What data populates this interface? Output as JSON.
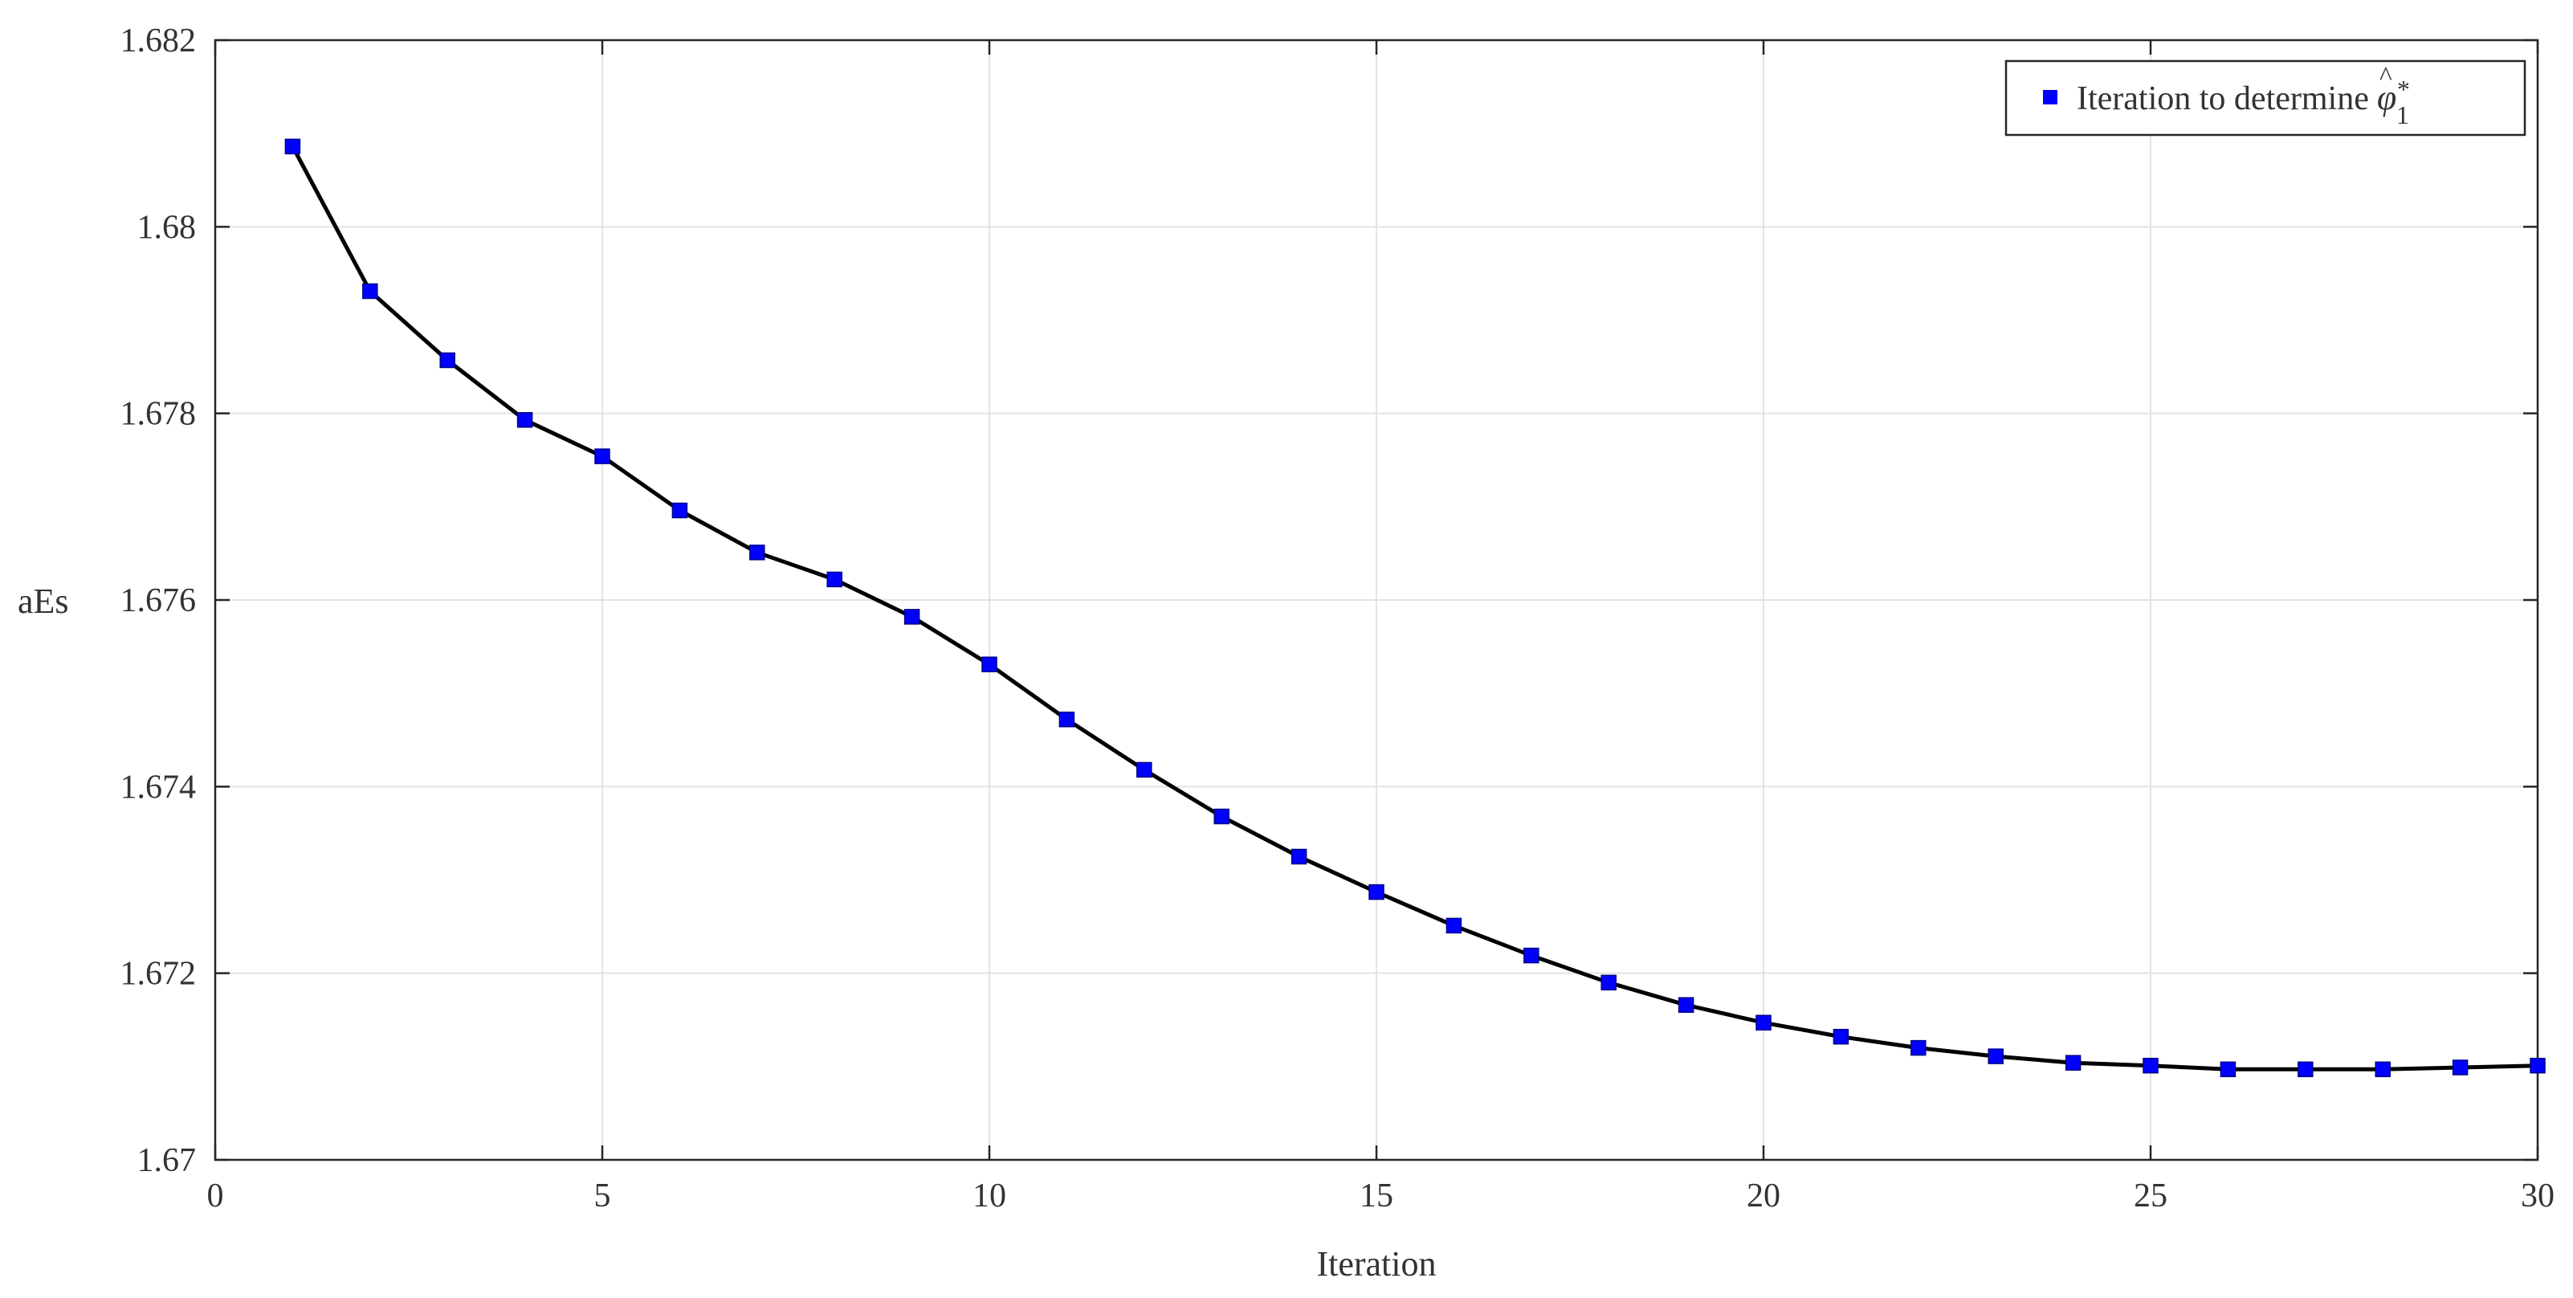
{
  "chart_data": {
    "type": "line",
    "title": "",
    "xlabel": "Iteration",
    "ylabel": "aEs",
    "xlim": [
      0,
      30
    ],
    "ylim": [
      1.67,
      1.682
    ],
    "xticks": [
      0,
      5,
      10,
      15,
      20,
      25,
      30
    ],
    "xtick_labels": [
      "0",
      "5",
      "10",
      "15",
      "20",
      "25",
      "30"
    ],
    "yticks": [
      1.67,
      1.672,
      1.674,
      1.676,
      1.678,
      1.68,
      1.682
    ],
    "ytick_labels": [
      "1.67",
      "1.672",
      "1.674",
      "1.676",
      "1.678",
      "1.68",
      "1.682"
    ],
    "grid": true,
    "legend_position": "top-right",
    "legend": {
      "label_prefix": "Iteration to determine",
      "symbol_base": "φ",
      "symbol_accent": "^",
      "symbol_sup": "*",
      "symbol_sub": "1"
    },
    "series": [
      {
        "name": "Iteration to determine φ̂*1",
        "line_color": "#000000",
        "marker_color": "#0000ff",
        "marker": "square",
        "x": [
          1,
          2,
          3,
          4,
          5,
          6,
          7,
          8,
          9,
          10,
          11,
          12,
          13,
          14,
          15,
          16,
          17,
          18,
          19,
          20,
          21,
          22,
          23,
          24,
          25,
          26,
          27,
          28,
          29,
          30
        ],
        "y": [
          1.68086,
          1.67931,
          1.67857,
          1.67793,
          1.67754,
          1.67696,
          1.67651,
          1.67622,
          1.67582,
          1.67531,
          1.67472,
          1.67418,
          1.67368,
          1.67325,
          1.67287,
          1.67251,
          1.67219,
          1.6719,
          1.67166,
          1.67147,
          1.67132,
          1.6712,
          1.67111,
          1.67104,
          1.67101,
          1.67097,
          1.67097,
          1.67097,
          1.67099,
          1.67101
        ]
      }
    ]
  }
}
